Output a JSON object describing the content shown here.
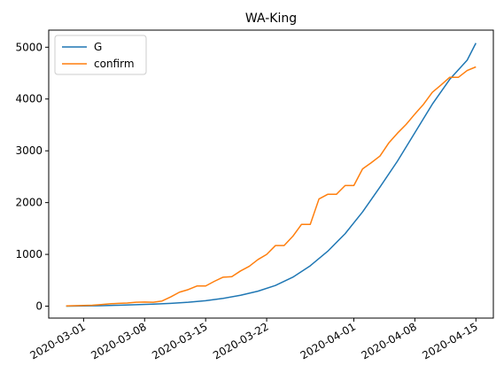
{
  "chart_data": {
    "type": "line",
    "title": "WA-King",
    "xlabel": "",
    "ylabel": "",
    "x_axis_type": "date",
    "xlim": [
      "2020-02-26",
      "2020-04-17"
    ],
    "ylim": [
      -230,
      5330
    ],
    "x_ticks": [
      "2020-03-01",
      "2020-03-08",
      "2020-03-15",
      "2020-03-22",
      "2020-04-01",
      "2020-04-08",
      "2020-04-15"
    ],
    "y_ticks": [
      0,
      1000,
      2000,
      3000,
      4000,
      5000
    ],
    "legend_position": "top-left",
    "grid": false,
    "series": [
      {
        "name": "G",
        "color": "#1f77b4",
        "x": [
          "2020-02-28",
          "2020-03-01",
          "2020-03-03",
          "2020-03-05",
          "2020-03-07",
          "2020-03-09",
          "2020-03-11",
          "2020-03-13",
          "2020-03-15",
          "2020-03-17",
          "2020-03-19",
          "2020-03-21",
          "2020-03-23",
          "2020-03-25",
          "2020-03-27",
          "2020-03-29",
          "2020-03-31",
          "2020-04-02",
          "2020-04-04",
          "2020-04-06",
          "2020-04-08",
          "2020-04-10",
          "2020-04-12",
          "2020-04-14",
          "2020-04-15"
        ],
        "y": [
          2,
          5,
          10,
          18,
          28,
          40,
          55,
          75,
          105,
          150,
          210,
          290,
          400,
          560,
          780,
          1060,
          1400,
          1820,
          2300,
          2800,
          3350,
          3900,
          4380,
          4750,
          5080
        ]
      },
      {
        "name": "confirm",
        "color": "#ff7f0e",
        "x": [
          "2020-02-28",
          "2020-02-29",
          "2020-03-01",
          "2020-03-02",
          "2020-03-03",
          "2020-03-04",
          "2020-03-05",
          "2020-03-06",
          "2020-03-07",
          "2020-03-08",
          "2020-03-09",
          "2020-03-10",
          "2020-03-11",
          "2020-03-12",
          "2020-03-13",
          "2020-03-14",
          "2020-03-15",
          "2020-03-16",
          "2020-03-17",
          "2020-03-18",
          "2020-03-19",
          "2020-03-20",
          "2020-03-21",
          "2020-03-22",
          "2020-03-23",
          "2020-03-24",
          "2020-03-25",
          "2020-03-26",
          "2020-03-27",
          "2020-03-28",
          "2020-03-29",
          "2020-03-30",
          "2020-03-31",
          "2020-04-01",
          "2020-04-02",
          "2020-04-03",
          "2020-04-04",
          "2020-04-05",
          "2020-04-06",
          "2020-04-07",
          "2020-04-08",
          "2020-04-09",
          "2020-04-10",
          "2020-04-11",
          "2020-04-12",
          "2020-04-13",
          "2020-04-14",
          "2020-04-15"
        ],
        "y": [
          5,
          10,
          14,
          18,
          30,
          45,
          55,
          60,
          75,
          80,
          75,
          100,
          180,
          270,
          320,
          390,
          390,
          480,
          560,
          570,
          680,
          770,
          900,
          1000,
          1170,
          1170,
          1350,
          1580,
          1580,
          2070,
          2160,
          2160,
          2330,
          2330,
          2650,
          2770,
          2900,
          3150,
          3340,
          3510,
          3710,
          3900,
          4130,
          4270,
          4420,
          4420,
          4550,
          4620
        ]
      }
    ]
  }
}
